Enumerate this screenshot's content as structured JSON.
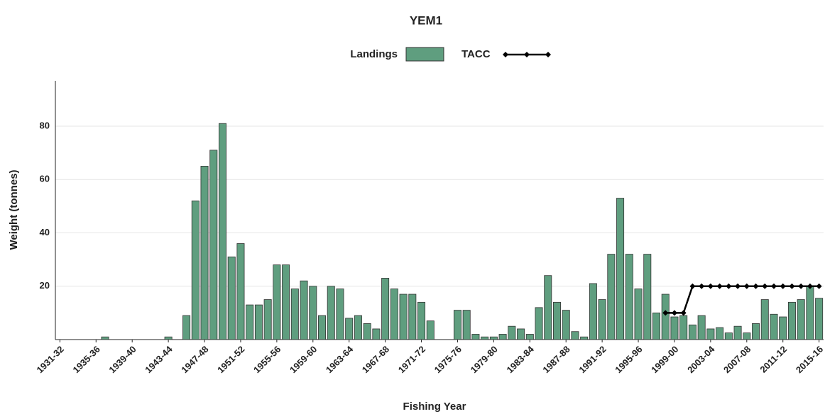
{
  "chart_data": {
    "type": "bar",
    "title": "YEM1",
    "x_label": "Fishing Year",
    "y_label": "Weight (tonnes)",
    "categories": [
      "1931-32",
      null,
      null,
      null,
      "1935-36",
      null,
      null,
      null,
      "1939-40",
      null,
      null,
      null,
      "1943-44",
      null,
      null,
      null,
      "1947-48",
      null,
      null,
      null,
      "1951-52",
      null,
      null,
      null,
      "1955-56",
      null,
      null,
      null,
      "1959-60",
      null,
      null,
      null,
      "1963-64",
      null,
      null,
      null,
      "1967-68",
      null,
      null,
      null,
      "1971-72",
      null,
      null,
      null,
      "1975-76",
      null,
      null,
      null,
      "1979-80",
      null,
      null,
      null,
      "1983-84",
      null,
      null,
      null,
      "1987-88",
      null,
      null,
      null,
      "1991-92",
      null,
      null,
      null,
      "1995-96",
      null,
      null,
      null,
      "1999-00",
      null,
      null,
      null,
      "2003-04",
      null,
      null,
      null,
      "2007-08",
      null,
      null,
      null,
      "2011-12",
      null,
      null,
      null,
      "2015-16"
    ],
    "series": [
      {
        "name": "Landings",
        "type": "bar",
        "color": "#5f9e7f",
        "values": [
          null,
          null,
          null,
          null,
          null,
          1,
          null,
          null,
          null,
          null,
          null,
          null,
          1,
          null,
          9,
          52,
          65,
          71,
          81,
          31,
          36,
          13,
          13,
          15,
          28,
          28,
          19,
          22,
          20,
          9,
          20,
          19,
          8,
          9,
          6,
          4,
          23,
          19,
          17,
          17,
          14,
          7,
          null,
          null,
          11,
          11,
          2,
          1,
          1,
          2,
          5,
          4,
          2,
          12,
          24,
          14,
          11,
          3,
          1,
          21,
          15,
          32,
          53,
          32,
          19,
          32,
          10,
          17,
          8.5,
          9,
          5.5,
          9,
          4,
          4.5,
          2.5,
          5,
          2.5,
          6,
          15,
          9.5,
          8.5,
          14,
          15,
          20,
          15.5
        ]
      },
      {
        "name": "TACC",
        "type": "line",
        "color": "#000000",
        "values": [
          null,
          null,
          null,
          null,
          null,
          null,
          null,
          null,
          null,
          null,
          null,
          null,
          null,
          null,
          null,
          null,
          null,
          null,
          null,
          null,
          null,
          null,
          null,
          null,
          null,
          null,
          null,
          null,
          null,
          null,
          null,
          null,
          null,
          null,
          null,
          null,
          null,
          null,
          null,
          null,
          null,
          null,
          null,
          null,
          null,
          null,
          null,
          null,
          null,
          null,
          null,
          null,
          null,
          null,
          null,
          null,
          null,
          null,
          null,
          null,
          null,
          null,
          null,
          null,
          null,
          null,
          null,
          10,
          10,
          10,
          20,
          20,
          20,
          20,
          20,
          20,
          20,
          20,
          20,
          20,
          20,
          20,
          20,
          20,
          20
        ]
      }
    ],
    "ylim": [
      0,
      97
    ],
    "yticks": [
      20,
      40,
      60,
      80
    ],
    "grid": true
  }
}
